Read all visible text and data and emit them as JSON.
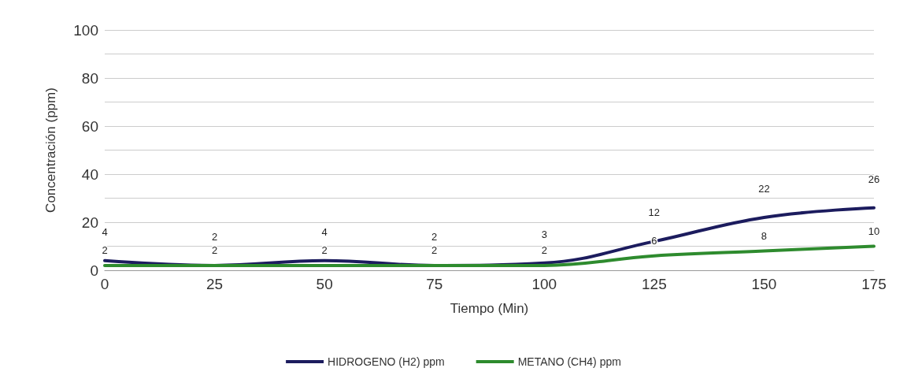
{
  "chart_data": {
    "type": "line",
    "xlabel": "Tiempo (Min)",
    "ylabel": "Concentración (ppm)",
    "x": [
      0,
      25,
      50,
      75,
      100,
      125,
      150,
      175
    ],
    "xlim": [
      0,
      175
    ],
    "xticks": [
      0,
      25,
      50,
      75,
      100,
      125,
      150,
      175
    ],
    "ylim": [
      0,
      100
    ],
    "yticks": [
      0,
      {
        "value": 10,
        "label": null
      },
      20,
      {
        "value": 30,
        "label": null
      },
      40,
      {
        "value": 50,
        "label": null
      },
      60,
      {
        "value": 70,
        "label": null
      },
      80,
      {
        "value": 90,
        "label": null
      },
      100
    ],
    "series": [
      {
        "name": "HIDROGENO (H2) ppm",
        "color": "#1c1c5e",
        "values": [
          4,
          2,
          4,
          2,
          3,
          12,
          22,
          26
        ]
      },
      {
        "name": "METANO (CH4) ppm",
        "color": "#2e8b2e",
        "values": [
          2,
          2,
          2,
          2,
          2,
          6,
          8,
          10
        ]
      }
    ],
    "data_labels": true,
    "grid": "y",
    "legend": "bottom",
    "marker": "none",
    "line_style": "solid"
  }
}
